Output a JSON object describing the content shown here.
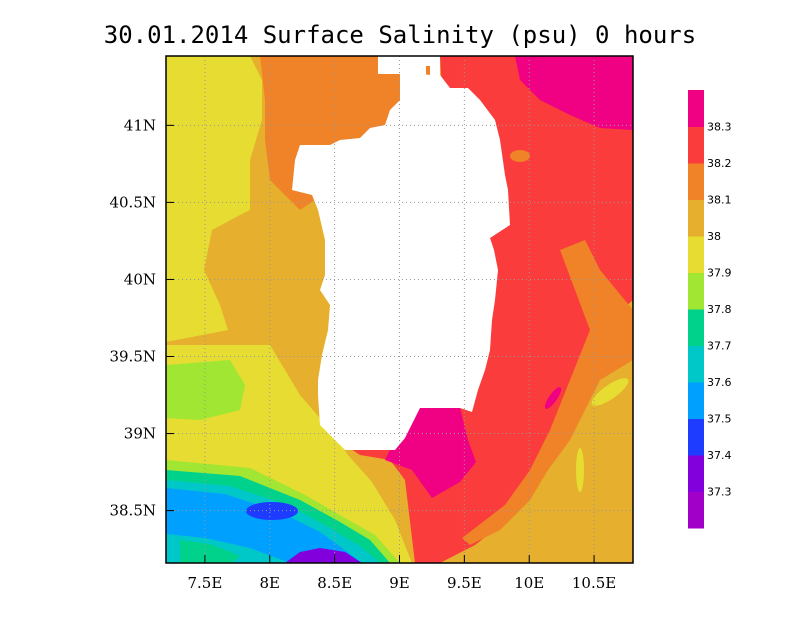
{
  "chart_data": {
    "type": "heatmap",
    "title": "30.01.2014 Surface Salinity (psu) 0 hours",
    "xlim": [
      7.2,
      10.8
    ],
    "ylim": [
      38.16,
      41.45
    ],
    "x_ticks": [
      {
        "value": 7.5,
        "label": "7.5E"
      },
      {
        "value": 8.0,
        "label": "8E"
      },
      {
        "value": 8.5,
        "label": "8.5E"
      },
      {
        "value": 9.0,
        "label": "9E"
      },
      {
        "value": 9.5,
        "label": "9.5E"
      },
      {
        "value": 10.0,
        "label": "10E"
      },
      {
        "value": 10.5,
        "label": "10.5E"
      }
    ],
    "y_ticks": [
      {
        "value": 38.5,
        "label": "38.5N"
      },
      {
        "value": 39.0,
        "label": "39N"
      },
      {
        "value": 39.5,
        "label": "39.5N"
      },
      {
        "value": 40.0,
        "label": "40N"
      },
      {
        "value": 40.5,
        "label": "40.5N"
      },
      {
        "value": 41.0,
        "label": "41N"
      }
    ],
    "grid": true,
    "colorbar": {
      "position": "right",
      "levels": [
        "37.3",
        "37.4",
        "37.5",
        "37.6",
        "37.7",
        "37.8",
        "37.9",
        "38",
        "38.1",
        "38.2",
        "38.3"
      ],
      "colors": [
        "#a000c8",
        "#8200dc",
        "#1e3cff",
        "#00a0ff",
        "#00c8c8",
        "#00d28c",
        "#a0e632",
        "#e6dc32",
        "#e6af2d",
        "#f08228",
        "#fa3c3c",
        "#f00082"
      ]
    },
    "regions": [
      {
        "value_range": "37.9-38.0",
        "lon": [
          7.2,
          8.0
        ],
        "lat": [
          39.5,
          41.45
        ]
      },
      {
        "value_range": "38.1-38.2",
        "lon": [
          8.0,
          9.0
        ],
        "lat": [
          40.4,
          41.45
        ]
      },
      {
        "value_range": ">38.3",
        "lon": [
          10.1,
          10.8
        ],
        "lat": [
          40.8,
          41.45
        ]
      },
      {
        "value_range": "38.2-38.3",
        "lon": [
          9.6,
          10.8
        ],
        "lat": [
          38.3,
          41.1
        ]
      },
      {
        "value_range": ">38.3",
        "lon": [
          9.0,
          9.5
        ],
        "lat": [
          38.7,
          39.1
        ]
      },
      {
        "value_range": "37.8-37.9",
        "lon": [
          7.2,
          7.7
        ],
        "lat": [
          39.1,
          39.5
        ]
      },
      {
        "value_range": "37.5-37.6",
        "lon": [
          7.2,
          8.7
        ],
        "lat": [
          38.16,
          38.7
        ]
      },
      {
        "value_range": "37.3-37.4",
        "lon": [
          8.2,
          8.8
        ],
        "lat": [
          38.16,
          38.3
        ]
      },
      {
        "value_range": "38.0-38.1",
        "lon": [
          10.0,
          10.8
        ],
        "lat": [
          38.16,
          39.6
        ]
      }
    ]
  }
}
